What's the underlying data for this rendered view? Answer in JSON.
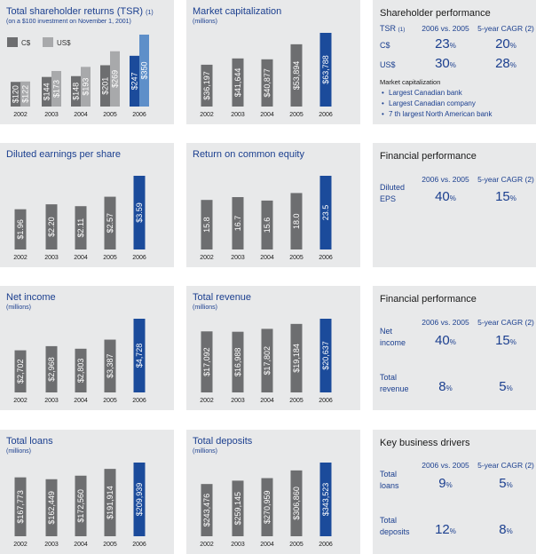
{
  "colors": {
    "accent": "#1b4b9b",
    "accent_light": "#5e8fc9",
    "gray": "#6d6e70",
    "gray_light": "#a8a9ab",
    "panel_bg": "#e8e9ea",
    "text_blue": "#1b3f8f"
  },
  "tsr_chart": {
    "title": "Total shareholder returns (TSR)",
    "title_note": "(1)",
    "subtitle": "(on a $100 investment on November 1, 2001)",
    "legend": [
      "C$",
      "US$"
    ]
  },
  "chart_data": [
    {
      "id": "tsr",
      "type": "bar",
      "title": "Total shareholder returns (TSR)",
      "categories": [
        "2002",
        "2003",
        "2004",
        "2005",
        "2006"
      ],
      "series": [
        {
          "name": "C$",
          "values": [
            120,
            144,
            148,
            201,
            247
          ],
          "labels": [
            "$120",
            "$144",
            "$148",
            "$201",
            "$247"
          ]
        },
        {
          "name": "US$",
          "values": [
            122,
            173,
            193,
            269,
            350
          ],
          "labels": [
            "$122",
            "$173",
            "$193",
            "$269",
            "$350"
          ]
        }
      ]
    },
    {
      "id": "market-cap",
      "type": "bar",
      "title": "Market capitalization",
      "subtitle": "(millions)",
      "categories": [
        "2002",
        "2003",
        "2004",
        "2005",
        "2006"
      ],
      "values": [
        36197,
        41644,
        40877,
        53894,
        63788
      ],
      "labels": [
        "$36,197",
        "$41,644",
        "$40,877",
        "$53,894",
        "$63,788"
      ]
    },
    {
      "id": "eps",
      "type": "bar",
      "title": "Diluted earnings per share",
      "categories": [
        "2002",
        "2003",
        "2004",
        "2005",
        "2006"
      ],
      "values": [
        1.96,
        2.2,
        2.11,
        2.57,
        3.59
      ],
      "labels": [
        "$1.96",
        "$2.20",
        "$2.11",
        "$2.57",
        "$3.59"
      ]
    },
    {
      "id": "roe",
      "type": "bar",
      "title": "Return on common equity",
      "categories": [
        "2002",
        "2003",
        "2004",
        "2005",
        "2006"
      ],
      "values": [
        15.8,
        16.7,
        15.6,
        18.0,
        23.5
      ],
      "labels": [
        "15.8",
        "16.7",
        "15.6",
        "18.0",
        "23.5"
      ]
    },
    {
      "id": "net-income",
      "type": "bar",
      "title": "Net income",
      "subtitle": "(millions)",
      "categories": [
        "2002",
        "2003",
        "2004",
        "2005",
        "2006"
      ],
      "values": [
        2702,
        2968,
        2803,
        3387,
        4728
      ],
      "labels": [
        "$2,702",
        "$2,968",
        "$2,803",
        "$3,387",
        "$4,728"
      ]
    },
    {
      "id": "total-revenue",
      "type": "bar",
      "title": "Total revenue",
      "subtitle": "(millions)",
      "categories": [
        "2002",
        "2003",
        "2004",
        "2005",
        "2006"
      ],
      "values": [
        17092,
        16988,
        17802,
        19184,
        20637
      ],
      "labels": [
        "$17,092",
        "$16,988",
        "$17,802",
        "$19,184",
        "$20,637"
      ]
    },
    {
      "id": "total-loans",
      "type": "bar",
      "title": "Total loans",
      "subtitle": "(millions)",
      "categories": [
        "2002",
        "2003",
        "2004",
        "2005",
        "2006"
      ],
      "values": [
        167773,
        162449,
        172560,
        191914,
        209939
      ],
      "labels": [
        "$167,773",
        "$162,449",
        "$172,560",
        "$191,914",
        "$209,939"
      ]
    },
    {
      "id": "total-deposits",
      "type": "bar",
      "title": "Total deposits",
      "subtitle": "(millions)",
      "categories": [
        "2002",
        "2003",
        "2004",
        "2005",
        "2006"
      ],
      "values": [
        243476,
        259145,
        270959,
        306860,
        343523
      ],
      "labels": [
        "$243,476",
        "$259,145",
        "$270,959",
        "$306,860",
        "$343,523"
      ]
    }
  ],
  "shareholder_perf": {
    "title": "Shareholder performance",
    "tsr_label": "TSR",
    "tsr_note": "(1)",
    "col1": "2006 vs. 2005",
    "col2": "5-year CAGR (2)",
    "row1_label": "C$",
    "row1_v1": "23",
    "row1_v2": "20",
    "row2_label": "US$",
    "row2_v1": "30",
    "row2_v2": "28",
    "pct": "%",
    "mc_title": "Market capitalization",
    "bullets": [
      "Largest Canadian bank",
      "Largest Canadian company",
      "7 th largest North American bank"
    ]
  },
  "fin_perf_1": {
    "title": "Financial performance",
    "col1": "2006 vs. 2005",
    "col2": "5-year CAGR (2)",
    "row_label_1": "Diluted",
    "row_label_2": "EPS",
    "v1": "40",
    "v2": "15",
    "pct": "%"
  },
  "fin_perf_2": {
    "title": "Financial performance",
    "col1": "2006 vs. 2005",
    "col2": "5-year CAGR (2)",
    "r1_l1": "Net",
    "r1_l2": "income",
    "r1_v1": "40",
    "r1_v2": "15",
    "r2_l1": "Total",
    "r2_l2": "revenue",
    "r2_v1": "8",
    "r2_v2": "5",
    "pct": "%"
  },
  "key_drivers": {
    "title": "Key business drivers",
    "col1": "2006 vs. 2005",
    "col2": "5-year CAGR (2)",
    "r1_l1": "Total",
    "r1_l2": "loans",
    "r1_v1": "9",
    "r1_v2": "5",
    "r2_l1": "Total",
    "r2_l2": "deposits",
    "r2_v1": "12",
    "r2_v2": "8",
    "pct": "%"
  }
}
